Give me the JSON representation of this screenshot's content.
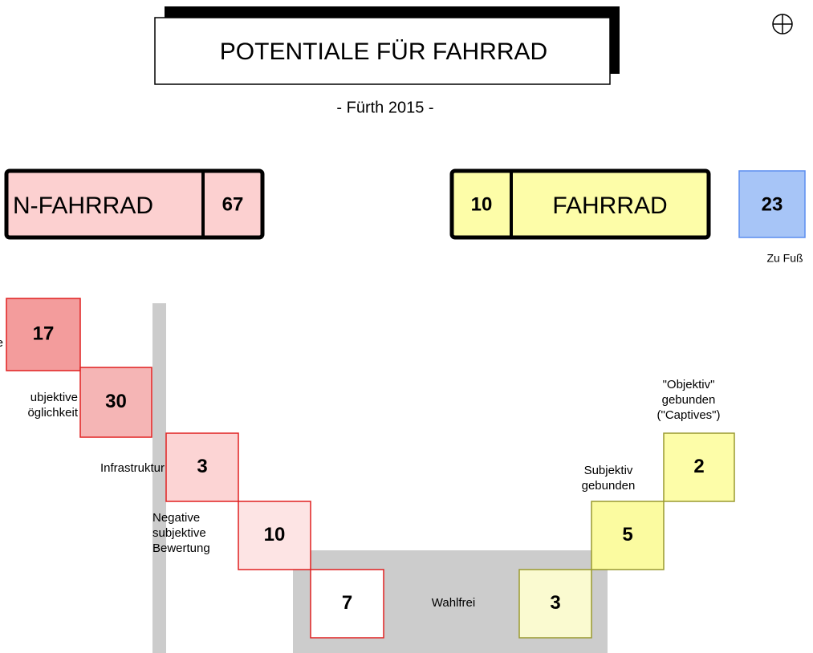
{
  "header": {
    "title": "POTENTIALE FÜR FAHRRAD",
    "subtitle": "- Fürth 2015 -"
  },
  "summary": {
    "non_bike": {
      "label": "N-FAHRRAD",
      "value": "67"
    },
    "bike": {
      "value": "10",
      "label": "FAHRRAD"
    },
    "walk": {
      "value": "23",
      "label": "Zu Fuß"
    }
  },
  "steps": [
    {
      "value": "17",
      "label": [
        "e"
      ]
    },
    {
      "value": "30",
      "label": [
        "ubjektive",
        "öglichkeit"
      ]
    },
    {
      "value": "3",
      "label": [
        "Infrastruktur"
      ]
    },
    {
      "value": "10",
      "label": [
        "Negative",
        "subjektive",
        "Bewertung"
      ]
    },
    {
      "value": "7",
      "label": []
    },
    {
      "value": "3",
      "label": [
        "Wahlfrei"
      ]
    },
    {
      "value": "5",
      "label": [
        "Subjektiv",
        "gebunden"
      ]
    },
    {
      "value": "2",
      "label": [
        "\"Objektiv\"",
        "gebunden",
        "(\"Captives\")"
      ]
    }
  ]
}
